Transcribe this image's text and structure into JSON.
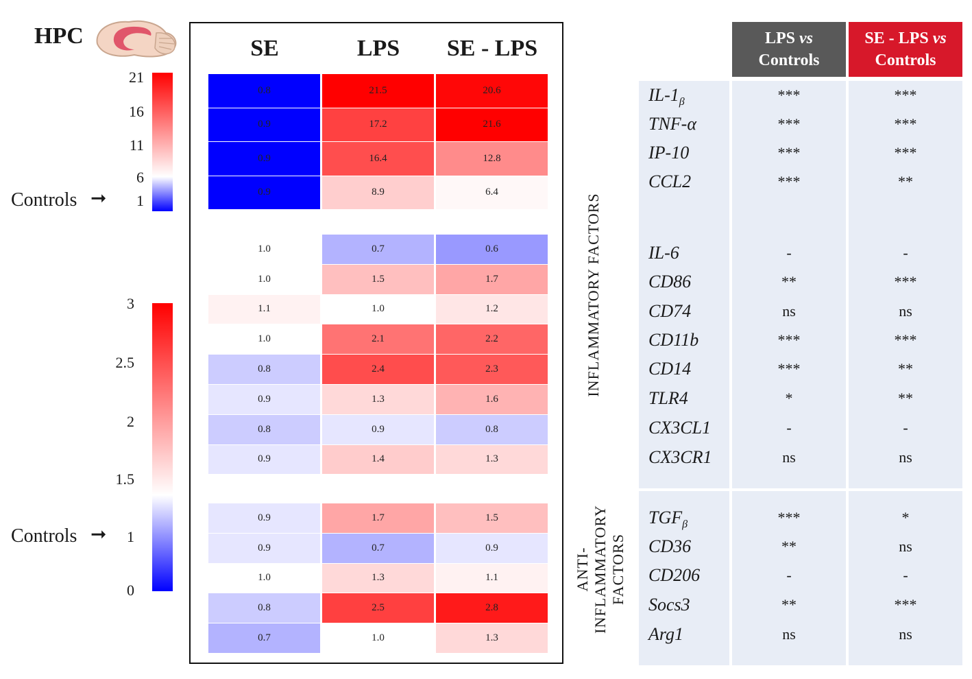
{
  "region_title": "HPC",
  "controls_label": "Controls",
  "arrow": "➞",
  "scale_top": {
    "ticks": [
      "21",
      "16",
      "11",
      "6",
      "1"
    ]
  },
  "scale_bottom": {
    "ticks": [
      "3",
      "2.5",
      "2",
      "1.5",
      "1",
      "0"
    ]
  },
  "colors": {
    "red": "#ff0000",
    "white": "#ffffff",
    "blue": "#0000ff",
    "header_gray": "#595959",
    "header_red": "#d7182a",
    "table_bg": "#e8edf6"
  },
  "chart_data": {
    "type": "heatmap",
    "columns": [
      "SE",
      "LPS",
      "SE - LPS"
    ],
    "groups": [
      {
        "name": "group1",
        "scale": "top",
        "rows": [
          [
            0.8,
            21.5,
            20.6
          ],
          [
            0.9,
            17.2,
            21.6
          ],
          [
            0.9,
            16.4,
            12.8
          ],
          [
            0.9,
            8.9,
            6.4
          ]
        ]
      },
      {
        "name": "group2",
        "scale": "bottom",
        "rows": [
          [
            1.0,
            0.7,
            0.6
          ],
          [
            1.0,
            1.5,
            1.7
          ],
          [
            1.1,
            1.0,
            1.2
          ],
          [
            1.0,
            2.1,
            2.2
          ],
          [
            0.8,
            2.4,
            2.3
          ],
          [
            0.9,
            1.3,
            1.6
          ],
          [
            0.8,
            0.9,
            0.8
          ],
          [
            0.9,
            1.4,
            1.3
          ]
        ]
      },
      {
        "name": "group3",
        "scale": "bottom",
        "rows": [
          [
            0.9,
            1.7,
            1.5
          ],
          [
            0.9,
            0.7,
            0.9
          ],
          [
            1.0,
            1.3,
            1.1
          ],
          [
            0.8,
            2.5,
            2.8
          ],
          [
            0.7,
            1.0,
            1.3
          ]
        ]
      }
    ],
    "scales": {
      "top": {
        "min": 1,
        "max": 21,
        "center": 6
      },
      "bottom": {
        "min": 0,
        "max": 3,
        "center": 1
      }
    }
  },
  "table": {
    "headers": [
      {
        "line1": "LPS ",
        "line1_em": "vs",
        "line2": "Controls"
      },
      {
        "line1": "SE - LPS ",
        "line1_em": "vs",
        "line2": "Controls"
      }
    ],
    "inflammatory_label": "INFLAMMATORY FACTORS",
    "anti_label_line1": "ANTI-",
    "anti_label_line2": "INFLAMMATORY",
    "anti_label_line3": "FACTORS",
    "rows": [
      {
        "gene": "IL-1",
        "sub": "β",
        "lps": "***",
        "selps": "***"
      },
      {
        "gene": "TNF-α",
        "sub": "",
        "lps": "***",
        "selps": "***"
      },
      {
        "gene": "IP-10",
        "sub": "",
        "lps": "***",
        "selps": "***"
      },
      {
        "gene": "CCL2",
        "sub": "",
        "lps": "***",
        "selps": "**"
      },
      {
        "gene": "IL-6",
        "sub": "",
        "lps": "-",
        "selps": "-"
      },
      {
        "gene": "CD86",
        "sub": "",
        "lps": "**",
        "selps": "***"
      },
      {
        "gene": "CD74",
        "sub": "",
        "lps": "ns",
        "selps": "ns"
      },
      {
        "gene": "CD11b",
        "sub": "",
        "lps": "***",
        "selps": "***"
      },
      {
        "gene": "CD14",
        "sub": "",
        "lps": "***",
        "selps": "**"
      },
      {
        "gene": "TLR4",
        "sub": "",
        "lps": "*",
        "selps": "**"
      },
      {
        "gene": "CX3CL1",
        "sub": "",
        "lps": "-",
        "selps": "-"
      },
      {
        "gene": "CX3CR1",
        "sub": "",
        "lps": "ns",
        "selps": "ns"
      },
      {
        "gene": "TGF",
        "sub": "β",
        "lps": "***",
        "selps": "*"
      },
      {
        "gene": "CD36",
        "sub": "",
        "lps": "**",
        "selps": "ns"
      },
      {
        "gene": "CD206",
        "sub": "",
        "lps": "-",
        "selps": "-"
      },
      {
        "gene": "Socs3",
        "sub": "",
        "lps": "**",
        "selps": "***"
      },
      {
        "gene": "Arg1",
        "sub": "",
        "lps": "ns",
        "selps": "ns"
      }
    ]
  }
}
